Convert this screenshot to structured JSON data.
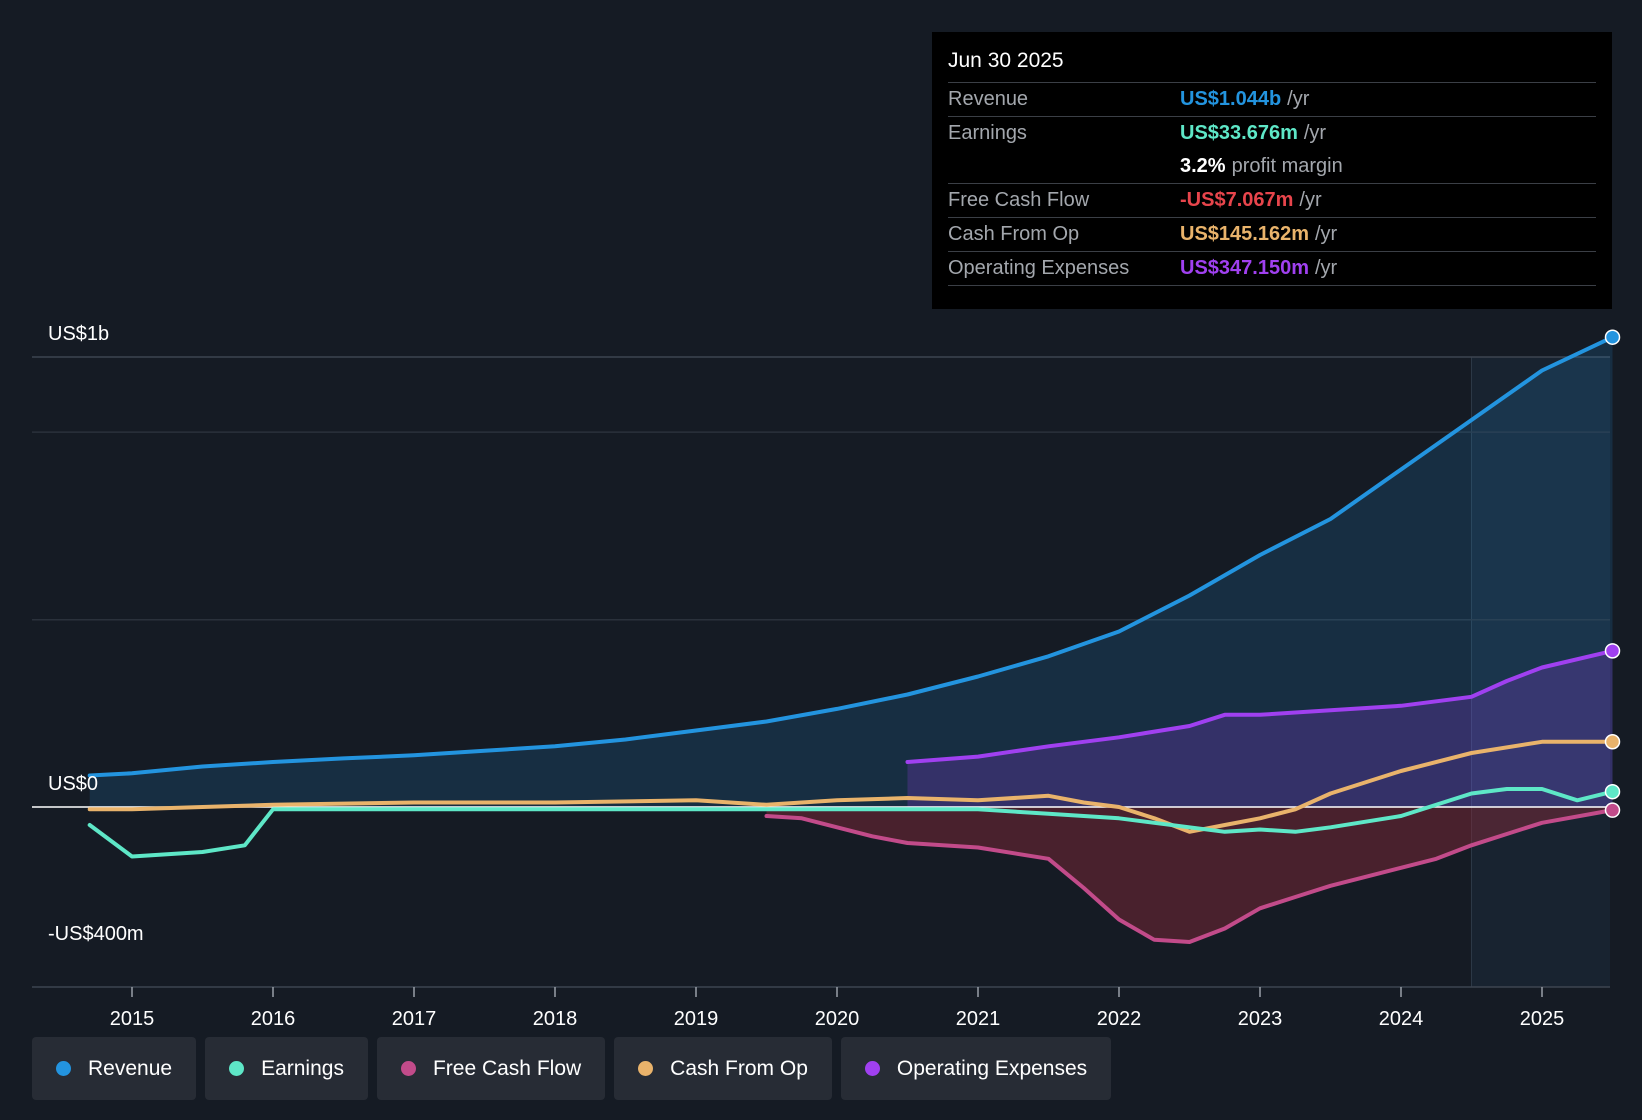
{
  "chart_data": {
    "type": "area",
    "y_axis_labels": {
      "top": "US$1b",
      "zero": "US$0",
      "bottom": "-US$400m"
    },
    "ylim": [
      -400,
      1000
    ],
    "x_ticks": [
      "2015",
      "2016",
      "2017",
      "2018",
      "2019",
      "2020",
      "2021",
      "2022",
      "2023",
      "2024",
      "2025"
    ],
    "x_range": [
      2014.3,
      2025.5
    ],
    "forecast_start": 2024.5,
    "series": [
      {
        "name": "Revenue",
        "color": "#2394df",
        "fill": true,
        "points": [
          [
            2014.7,
            70
          ],
          [
            2015,
            75
          ],
          [
            2015.5,
            90
          ],
          [
            2016,
            100
          ],
          [
            2016.5,
            108
          ],
          [
            2017,
            115
          ],
          [
            2017.5,
            125
          ],
          [
            2018,
            135
          ],
          [
            2018.5,
            150
          ],
          [
            2019,
            170
          ],
          [
            2019.5,
            190
          ],
          [
            2020,
            218
          ],
          [
            2020.5,
            250
          ],
          [
            2021,
            290
          ],
          [
            2021.5,
            335
          ],
          [
            2022,
            390
          ],
          [
            2022.5,
            470
          ],
          [
            2023,
            560
          ],
          [
            2023.5,
            640
          ],
          [
            2024,
            750
          ],
          [
            2024.5,
            860
          ],
          [
            2025,
            970
          ],
          [
            2025.5,
            1044
          ]
        ]
      },
      {
        "name": "Operating Expenses",
        "color": "#a040f0",
        "fill": true,
        "points": [
          [
            2020.5,
            100
          ],
          [
            2021,
            112
          ],
          [
            2021.5,
            135
          ],
          [
            2022,
            155
          ],
          [
            2022.5,
            180
          ],
          [
            2022.75,
            205
          ],
          [
            2023,
            205
          ],
          [
            2023.5,
            215
          ],
          [
            2024,
            225
          ],
          [
            2024.5,
            245
          ],
          [
            2024.75,
            280
          ],
          [
            2025,
            310
          ],
          [
            2025.5,
            347
          ]
        ]
      },
      {
        "name": "Cash From Op",
        "color": "#e9b36b",
        "fill": false,
        "points": [
          [
            2014.7,
            -5
          ],
          [
            2015,
            -5
          ],
          [
            2015.5,
            0
          ],
          [
            2016,
            5
          ],
          [
            2017,
            10
          ],
          [
            2018,
            10
          ],
          [
            2019,
            15
          ],
          [
            2019.5,
            5
          ],
          [
            2020,
            15
          ],
          [
            2020.5,
            20
          ],
          [
            2021,
            15
          ],
          [
            2021.5,
            25
          ],
          [
            2021.75,
            10
          ],
          [
            2022,
            0
          ],
          [
            2022.25,
            -25
          ],
          [
            2022.5,
            -55
          ],
          [
            2022.75,
            -40
          ],
          [
            2023,
            -25
          ],
          [
            2023.25,
            -5
          ],
          [
            2023.5,
            30
          ],
          [
            2024,
            80
          ],
          [
            2024.5,
            120
          ],
          [
            2025,
            145
          ],
          [
            2025.5,
            145
          ]
        ]
      },
      {
        "name": "Earnings",
        "color": "#5ee7c7",
        "fill": false,
        "points": [
          [
            2014.7,
            -40
          ],
          [
            2015,
            -110
          ],
          [
            2015.5,
            -100
          ],
          [
            2015.8,
            -85
          ],
          [
            2016,
            -5
          ],
          [
            2017,
            -5
          ],
          [
            2018,
            -5
          ],
          [
            2019,
            -5
          ],
          [
            2019.5,
            -5
          ],
          [
            2020,
            -5
          ],
          [
            2021,
            -5
          ],
          [
            2021.5,
            -15
          ],
          [
            2022,
            -25
          ],
          [
            2022.5,
            -45
          ],
          [
            2022.75,
            -55
          ],
          [
            2023,
            -50
          ],
          [
            2023.25,
            -55
          ],
          [
            2023.5,
            -45
          ],
          [
            2024,
            -20
          ],
          [
            2024.5,
            30
          ],
          [
            2024.75,
            40
          ],
          [
            2025,
            40
          ],
          [
            2025.25,
            15
          ],
          [
            2025.5,
            34
          ]
        ]
      },
      {
        "name": "Free Cash Flow",
        "color": "#c24b8a",
        "fill": true,
        "points": [
          [
            2019.5,
            -20
          ],
          [
            2019.75,
            -25
          ],
          [
            2020,
            -45
          ],
          [
            2020.25,
            -65
          ],
          [
            2020.5,
            -80
          ],
          [
            2021,
            -90
          ],
          [
            2021.5,
            -115
          ],
          [
            2021.75,
            -180
          ],
          [
            2022,
            -250
          ],
          [
            2022.25,
            -295
          ],
          [
            2022.5,
            -300
          ],
          [
            2022.75,
            -270
          ],
          [
            2023,
            -225
          ],
          [
            2023.25,
            -200
          ],
          [
            2023.5,
            -175
          ],
          [
            2024,
            -135
          ],
          [
            2024.25,
            -115
          ],
          [
            2024.5,
            -85
          ],
          [
            2024.75,
            -60
          ],
          [
            2025,
            -35
          ],
          [
            2025.5,
            -7
          ]
        ]
      }
    ],
    "tooltip": {
      "date": "Jun 30 2025",
      "rows": [
        {
          "label": "Revenue",
          "value": "US$1.044b",
          "unit": "/yr",
          "color": "#2394df"
        },
        {
          "label": "Earnings",
          "value": "US$33.676m",
          "unit": "/yr",
          "color": "#5ee7c7"
        },
        {
          "label": "",
          "value": "3.2%",
          "unit": "profit margin",
          "color": "#ffffff"
        },
        {
          "label": "Free Cash Flow",
          "value": "-US$7.067m",
          "unit": "/yr",
          "color": "#e8454c"
        },
        {
          "label": "Cash From Op",
          "value": "US$145.162m",
          "unit": "/yr",
          "color": "#e9b36b"
        },
        {
          "label": "Operating Expenses",
          "value": "US$347.150m",
          "unit": "/yr",
          "color": "#a040f0"
        }
      ]
    },
    "legend": [
      {
        "label": "Revenue",
        "color": "#2394df"
      },
      {
        "label": "Earnings",
        "color": "#5ee7c7"
      },
      {
        "label": "Free Cash Flow",
        "color": "#c24b8a"
      },
      {
        "label": "Cash From Op",
        "color": "#e9b36b"
      },
      {
        "label": "Operating Expenses",
        "color": "#a040f0"
      }
    ]
  }
}
